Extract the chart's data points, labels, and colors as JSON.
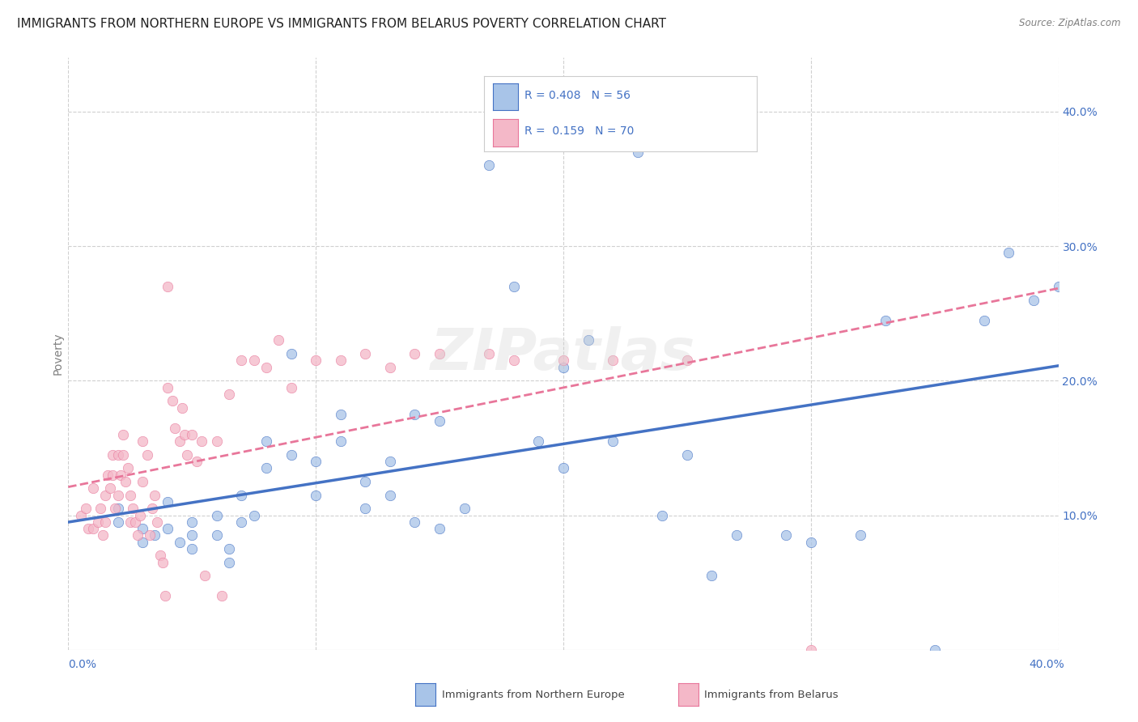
{
  "title": "IMMIGRANTS FROM NORTHERN EUROPE VS IMMIGRANTS FROM BELARUS POVERTY CORRELATION CHART",
  "source": "Source: ZipAtlas.com",
  "ylabel": "Poverty",
  "ytick_values": [
    0.1,
    0.2,
    0.3,
    0.4
  ],
  "xmin": 0.0,
  "xmax": 0.4,
  "ymin": 0.0,
  "ymax": 0.44,
  "watermark": "ZIPatlas",
  "blue_R": 0.408,
  "blue_N": 56,
  "pink_R": 0.159,
  "pink_N": 70,
  "blue_scatter_x": [
    0.02,
    0.02,
    0.03,
    0.03,
    0.035,
    0.04,
    0.04,
    0.045,
    0.05,
    0.05,
    0.05,
    0.06,
    0.06,
    0.065,
    0.065,
    0.07,
    0.07,
    0.075,
    0.08,
    0.08,
    0.09,
    0.09,
    0.1,
    0.1,
    0.11,
    0.11,
    0.12,
    0.12,
    0.13,
    0.13,
    0.14,
    0.14,
    0.15,
    0.15,
    0.16,
    0.17,
    0.18,
    0.19,
    0.2,
    0.2,
    0.21,
    0.22,
    0.23,
    0.24,
    0.25,
    0.26,
    0.27,
    0.29,
    0.3,
    0.32,
    0.33,
    0.35,
    0.37,
    0.38,
    0.39,
    0.4
  ],
  "blue_scatter_y": [
    0.095,
    0.105,
    0.09,
    0.08,
    0.085,
    0.11,
    0.09,
    0.08,
    0.085,
    0.095,
    0.075,
    0.1,
    0.085,
    0.075,
    0.065,
    0.115,
    0.095,
    0.1,
    0.155,
    0.135,
    0.22,
    0.145,
    0.14,
    0.115,
    0.175,
    0.155,
    0.125,
    0.105,
    0.14,
    0.115,
    0.175,
    0.095,
    0.17,
    0.09,
    0.105,
    0.36,
    0.27,
    0.155,
    0.21,
    0.135,
    0.23,
    0.155,
    0.37,
    0.1,
    0.145,
    0.055,
    0.085,
    0.085,
    0.08,
    0.085,
    0.245,
    0.0,
    0.245,
    0.295,
    0.26,
    0.27
  ],
  "pink_scatter_x": [
    0.005,
    0.007,
    0.008,
    0.01,
    0.01,
    0.012,
    0.013,
    0.014,
    0.015,
    0.015,
    0.016,
    0.017,
    0.018,
    0.018,
    0.019,
    0.02,
    0.02,
    0.021,
    0.022,
    0.022,
    0.023,
    0.024,
    0.025,
    0.025,
    0.026,
    0.027,
    0.028,
    0.029,
    0.03,
    0.03,
    0.032,
    0.033,
    0.034,
    0.035,
    0.036,
    0.037,
    0.038,
    0.039,
    0.04,
    0.04,
    0.042,
    0.043,
    0.045,
    0.046,
    0.047,
    0.048,
    0.05,
    0.052,
    0.054,
    0.055,
    0.06,
    0.062,
    0.065,
    0.07,
    0.075,
    0.08,
    0.085,
    0.09,
    0.1,
    0.11,
    0.12,
    0.13,
    0.14,
    0.15,
    0.17,
    0.18,
    0.2,
    0.22,
    0.25,
    0.3
  ],
  "pink_scatter_y": [
    0.1,
    0.105,
    0.09,
    0.12,
    0.09,
    0.095,
    0.105,
    0.085,
    0.115,
    0.095,
    0.13,
    0.12,
    0.145,
    0.13,
    0.105,
    0.145,
    0.115,
    0.13,
    0.16,
    0.145,
    0.125,
    0.135,
    0.115,
    0.095,
    0.105,
    0.095,
    0.085,
    0.1,
    0.155,
    0.125,
    0.145,
    0.085,
    0.105,
    0.115,
    0.095,
    0.07,
    0.065,
    0.04,
    0.27,
    0.195,
    0.185,
    0.165,
    0.155,
    0.18,
    0.16,
    0.145,
    0.16,
    0.14,
    0.155,
    0.055,
    0.155,
    0.04,
    0.19,
    0.215,
    0.215,
    0.21,
    0.23,
    0.195,
    0.215,
    0.215,
    0.22,
    0.21,
    0.22,
    0.22,
    0.22,
    0.215,
    0.215,
    0.215,
    0.215,
    0.0
  ],
  "blue_line_color": "#4472c4",
  "pink_line_color": "#e8769a",
  "dot_blue_color": "#a8c4e8",
  "dot_pink_color": "#f4b8c8",
  "grid_color": "#d0d0d0",
  "background_color": "#ffffff",
  "title_fontsize": 11,
  "axis_label_fontsize": 10,
  "tick_fontsize": 10
}
